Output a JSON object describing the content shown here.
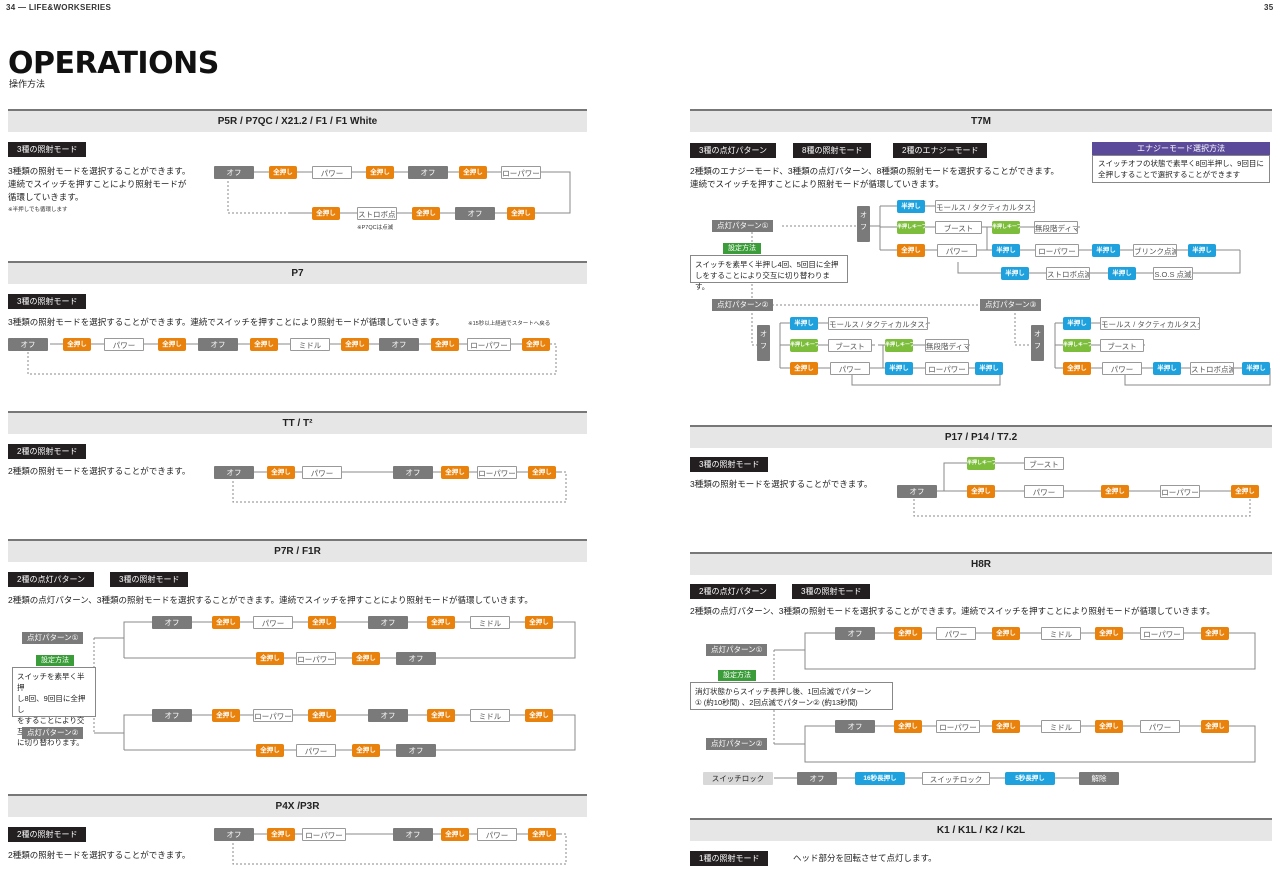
{
  "header": {
    "left": "34 — LIFE&WORKSERIES",
    "right": "35"
  },
  "title": "OPERATIONS",
  "subtitle": "操作方法",
  "common": {
    "off": "オフ",
    "full": "全押し",
    "half": "半押し",
    "halfkeep": "半押しキープ",
    "power": "パワー",
    "low": "ローパワー",
    "mid": "ミドル",
    "strobe": "ストロボ点滅",
    "boost": "ブースト",
    "morse": "モールス / タクティカルタスク",
    "dimmer": "無段階ディマー",
    "blink": "ブリンク点滅",
    "sos": "S.O.S 点滅",
    "p1": "点灯パターン①",
    "p2": "点灯パターン②",
    "p3": "点灯パターン③",
    "setting": "設定方法"
  },
  "s1": {
    "title": "P5R / P7QC / X21.2 / F1 / F1 White",
    "tag": "3種の照射モード",
    "desc": [
      "3種類の照射モードを選択することができます。",
      "連続でスイッチを押すことにより照射モードが",
      "循環していきます。"
    ],
    "note1": "※半押しでも循環します",
    "note2": "※P7QCは点滅"
  },
  "s2": {
    "title": "P7",
    "tag": "3種の照射モード",
    "desc": "3種類の照射モードを選択することができます。連続でスイッチを押すことにより照射モードが循環していきます。",
    "note": "※15秒以上経過でスタートへ戻る"
  },
  "s3": {
    "title": "TT / T²",
    "tag": "2種の照射モード",
    "desc": "2種類の照射モードを選択することができます。"
  },
  "s4": {
    "title": "P7R / F1R",
    "tag1": "2種の点灯パターン",
    "tag2": "3種の照射モード",
    "desc": "2種類の点灯パターン、3種類の照射モードを選択することができます。連続でスイッチを押すことにより照射モードが循環していきます。",
    "setting": [
      "スイッチを素早く半押",
      "し8回、9回目に全押し",
      "をすることにより交互",
      "に切り替わります。"
    ]
  },
  "s5": {
    "title": "P4X /P3R",
    "tag": "2種の照射モード",
    "desc": "2種類の照射モードを選択することができます。"
  },
  "s6": {
    "title": "T7M",
    "tag1": "3種の点灯パターン",
    "tag2": "8種の照射モード",
    "tag3": "2種のエナジーモード",
    "desc": [
      "2種類のエナジーモード、3種類の点灯パターン、8種類の照射モードを選択することができます。",
      "連続でスイッチを押すことにより照射モードが循環していきます。"
    ],
    "energy_title": "エナジーモード選択方法",
    "energy": [
      "スイッチオフの状態で素早く8回半押し、9回目に",
      "全押しすることで選択することができます"
    ],
    "setting": [
      "スイッチを素早く半押し4回、5回目に全押",
      "しをすることにより交互に切り替わります。"
    ]
  },
  "s7": {
    "title": "P17 / P14 / T7.2",
    "tag": "3種の照射モード",
    "desc": "3種類の照射モードを選択することができます。"
  },
  "s8": {
    "title": "H8R",
    "tag1": "2種の点灯パターン",
    "tag2": "3種の照射モード",
    "desc": "2種類の点灯パターン、3種類の照射モードを選択することができます。連続でスイッチを押すことにより照射モードが循環していきます。",
    "setting": [
      "消灯状態からスイッチ長押し後、1回点滅でパターン",
      "① (約10秒間) 、2回点滅でパターン② (約13秒間)"
    ],
    "lock": "スイッチロック",
    "press16": "16秒長押し",
    "press5": "5秒長押し",
    "lockmode": "スイッチロック",
    "unlock": "解除"
  },
  "s9": {
    "title": "K1 / K1L / K2 / K2L",
    "tag": "1種の照射モード",
    "desc": "ヘッド部分を回転させて点灯します。"
  }
}
